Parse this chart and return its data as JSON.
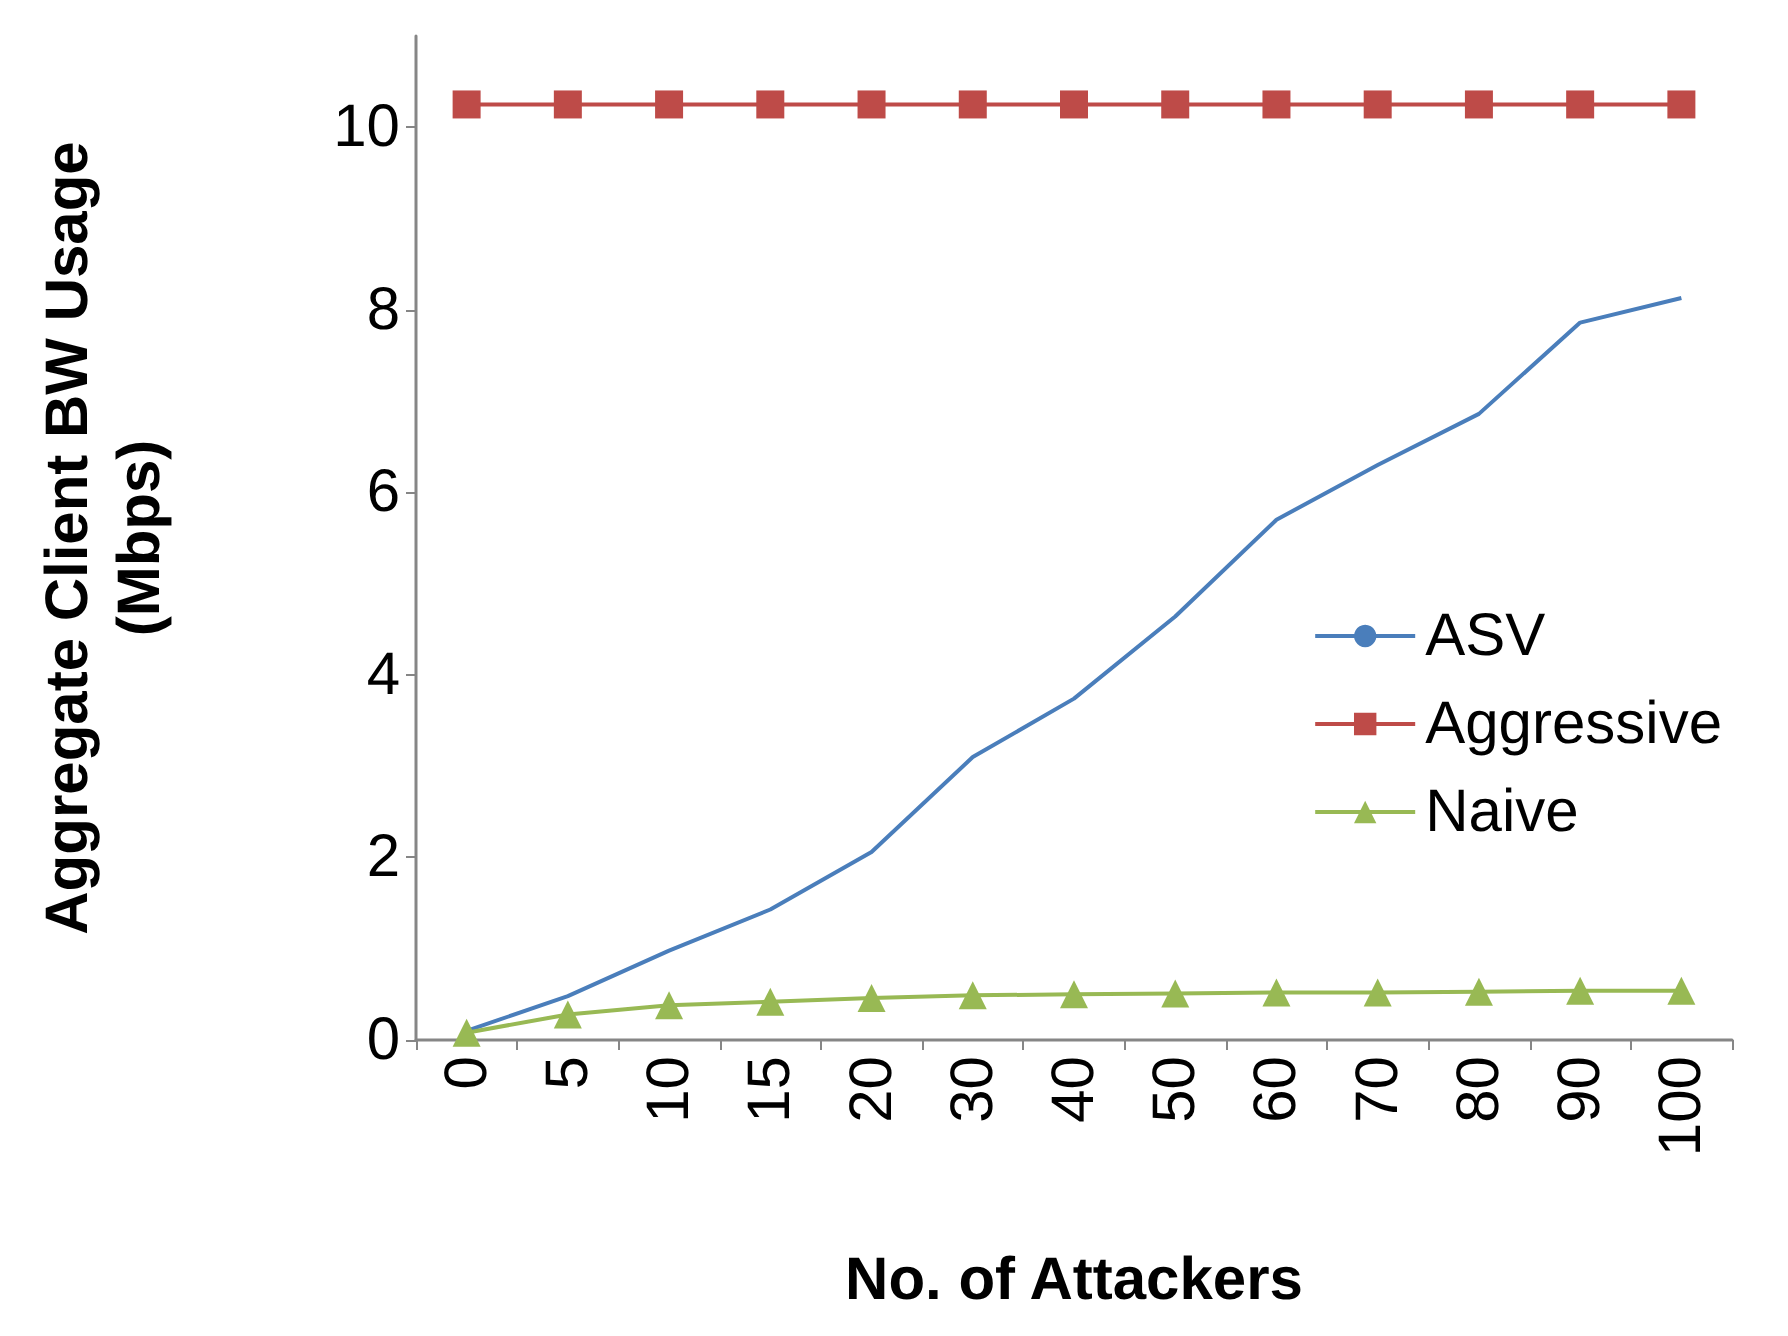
{
  "chart_data": {
    "type": "line",
    "xlabel": "No. of Attackers",
    "ylabel": "Aggregate Client BW Usage\n(Mbps)",
    "categories": [
      "0",
      "5",
      "10",
      "15",
      "20",
      "30",
      "40",
      "50",
      "60",
      "70",
      "80",
      "90",
      "100"
    ],
    "series": [
      {
        "name": "ASV",
        "color": "#4a7ebb",
        "marker": "none",
        "values": [
          0.1,
          0.48,
          0.98,
          1.43,
          2.06,
          3.1,
          3.74,
          4.64,
          5.7,
          6.3,
          6.86,
          7.86,
          8.13
        ]
      },
      {
        "name": "Aggressive",
        "color": "#be4b48",
        "marker": "square",
        "values": [
          10.25,
          10.25,
          10.25,
          10.25,
          10.25,
          10.25,
          10.25,
          10.25,
          10.25,
          10.25,
          10.25,
          10.25,
          10.25
        ]
      },
      {
        "name": "Naive",
        "color": "#98b954",
        "marker": "triangle",
        "values": [
          0.08,
          0.28,
          0.38,
          0.42,
          0.46,
          0.49,
          0.5,
          0.51,
          0.52,
          0.52,
          0.53,
          0.54,
          0.54
        ]
      }
    ],
    "ylim": [
      0,
      11
    ],
    "yticks": [
      0,
      2,
      4,
      6,
      8,
      10
    ],
    "grid": false,
    "legend": "right"
  }
}
